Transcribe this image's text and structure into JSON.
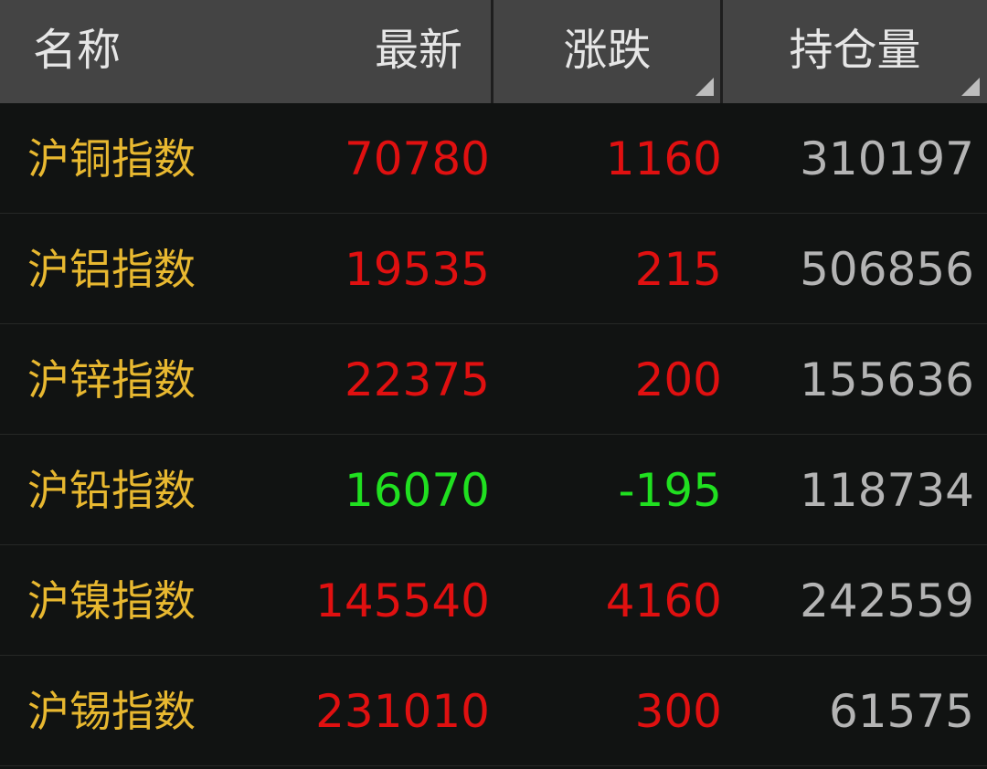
{
  "header": {
    "name": "名称",
    "last": "最新",
    "change": "涨跌",
    "open_interest": "持仓量"
  },
  "colors": {
    "up": "#e01010",
    "down": "#20e020",
    "name": "#e8b830",
    "neutral": "#b4b4b4"
  },
  "rows": [
    {
      "name": "沪铜指数",
      "last": "70780",
      "change": "1160",
      "open_interest": "310197",
      "direction": "up"
    },
    {
      "name": "沪铝指数",
      "last": "19535",
      "change": "215",
      "open_interest": "506856",
      "direction": "up"
    },
    {
      "name": "沪锌指数",
      "last": "22375",
      "change": "200",
      "open_interest": "155636",
      "direction": "up"
    },
    {
      "name": "沪铅指数",
      "last": "16070",
      "change": "-195",
      "open_interest": "118734",
      "direction": "down"
    },
    {
      "name": "沪镍指数",
      "last": "145540",
      "change": "4160",
      "open_interest": "242559",
      "direction": "up"
    },
    {
      "name": "沪锡指数",
      "last": "231010",
      "change": "300",
      "open_interest": "61575",
      "direction": "up"
    }
  ]
}
